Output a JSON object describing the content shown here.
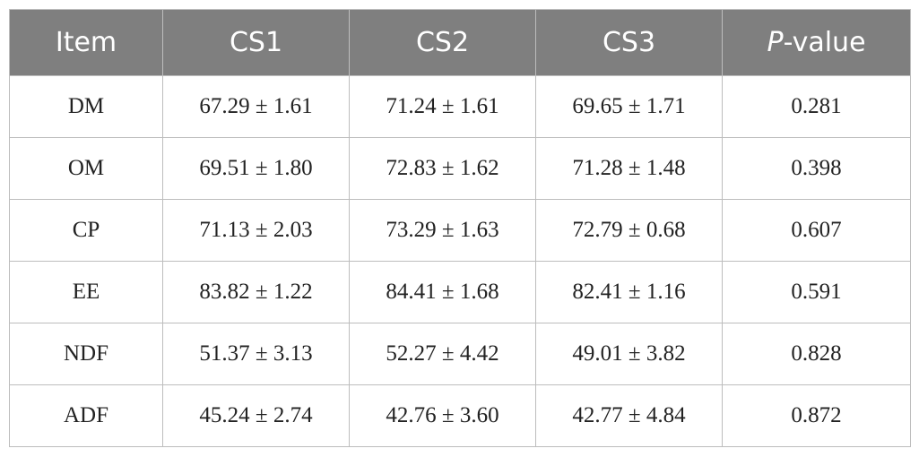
{
  "table": {
    "header": [
      "Item",
      "CS1",
      "CS2",
      "CS3",
      {
        "italic": "P",
        "rest": "-value"
      }
    ],
    "rows": [
      [
        "DM",
        "67.29 ± 1.61",
        "71.24 ± 1.61",
        "69.65 ± 1.71",
        "0.281"
      ],
      [
        "OM",
        "69.51 ± 1.80",
        "72.83 ± 1.62",
        "71.28 ± 1.48",
        "0.398"
      ],
      [
        "CP",
        "71.13 ± 2.03",
        "73.29 ± 1.63",
        "72.79 ± 0.68",
        "0.607"
      ],
      [
        "EE",
        "83.82 ± 1.22",
        "84.41 ± 1.68",
        "82.41 ± 1.16",
        "0.591"
      ],
      [
        "NDF",
        "51.37 ± 3.13",
        "52.27 ± 4.42",
        "49.01 ± 3.82",
        "0.828"
      ],
      [
        "ADF",
        "45.24 ± 2.74",
        "42.76 ± 3.60",
        "42.77 ± 4.84",
        "0.872"
      ]
    ]
  }
}
